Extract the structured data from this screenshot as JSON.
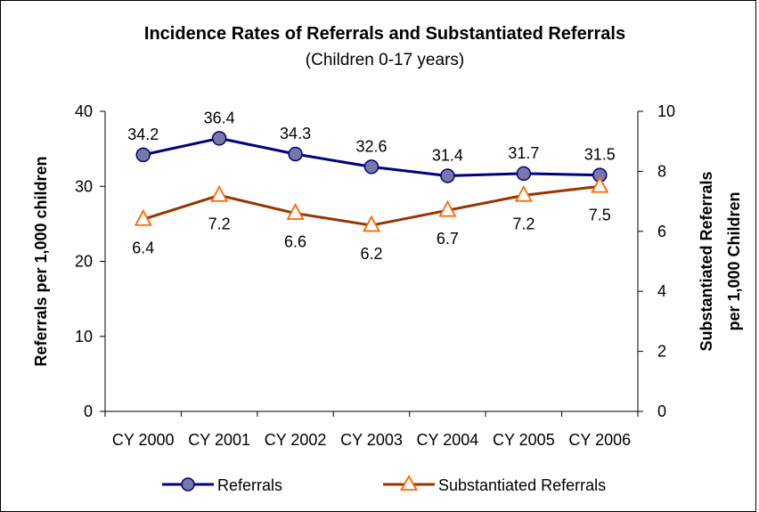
{
  "chart_data": {
    "type": "line",
    "title": "Incidence Rates of Referrals and Substantiated Referrals",
    "subtitle": "(Children 0-17 years)",
    "categories": [
      "CY 2000",
      "CY 2001",
      "CY 2002",
      "CY 2003",
      "CY 2004",
      "CY 2005",
      "CY 2006"
    ],
    "y_left": {
      "label": "Referrals per 1,000 children",
      "range": [
        0,
        40
      ],
      "ticks": [
        "0",
        "10",
        "20",
        "30",
        "40"
      ]
    },
    "y_right": {
      "label_line1": "Substantiated Referrals",
      "label_line2": "per 1,000 Children",
      "range": [
        0,
        10
      ],
      "ticks": [
        "0",
        "2",
        "4",
        "6",
        "8",
        "10"
      ]
    },
    "grid": false,
    "legend_position": "bottom",
    "series": [
      {
        "name": "Referrals",
        "axis": "left",
        "values": [
          34.2,
          36.4,
          34.3,
          32.6,
          31.4,
          31.7,
          31.5
        ],
        "labels": [
          "34.2",
          "36.4",
          "34.3",
          "32.6",
          "31.4",
          "31.7",
          "31.5"
        ],
        "line_color": "#000080",
        "marker": "circle",
        "marker_fill": "#7777AA"
      },
      {
        "name": "Substantiated Referrals",
        "axis": "right",
        "values": [
          6.4,
          7.2,
          6.6,
          6.2,
          6.7,
          7.2,
          7.5
        ],
        "labels": [
          "6.4",
          "7.2",
          "6.6",
          "6.2",
          "6.7",
          "7.2",
          "7.5"
        ],
        "line_color": "#993300",
        "marker": "triangle",
        "marker_stroke": "#FF6600"
      }
    ]
  }
}
